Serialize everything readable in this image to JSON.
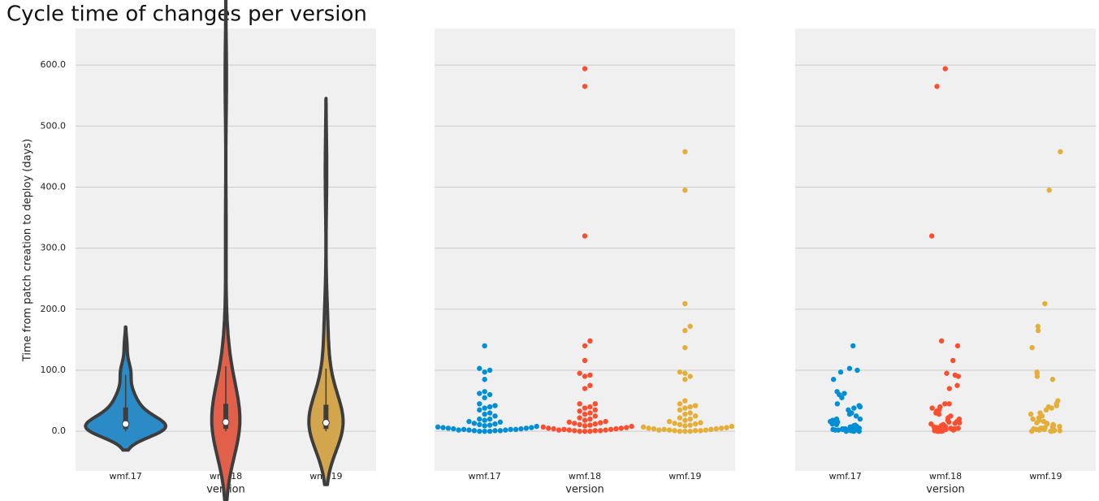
{
  "chart_data": [
    {
      "type": "violin",
      "title": "Cycle time of changes per version",
      "ylabel": "Time from patch creation to deploy (days)",
      "xlabel": "version",
      "categories": [
        "wmf.17",
        "wmf.18",
        "wmf.19"
      ],
      "colors": [
        "#2a8bc7",
        "#e2604a",
        "#d3a54c"
      ],
      "values": [
        [
          0,
          0,
          0,
          1,
          1,
          1,
          2,
          2,
          2,
          3,
          3,
          3,
          4,
          4,
          5,
          5,
          6,
          6,
          7,
          8,
          9,
          10,
          11,
          12,
          13,
          15,
          16,
          18,
          20,
          20,
          25,
          28,
          30,
          35,
          38,
          40,
          42,
          45,
          55,
          60,
          62,
          65,
          85,
          97,
          100,
          103,
          140
        ],
        [
          0,
          0,
          0,
          1,
          1,
          1,
          2,
          2,
          2,
          3,
          3,
          4,
          4,
          5,
          5,
          6,
          7,
          8,
          9,
          10,
          11,
          12,
          13,
          14,
          15,
          16,
          18,
          20,
          22,
          25,
          28,
          30,
          33,
          35,
          38,
          40,
          45,
          45,
          70,
          75,
          90,
          92,
          95,
          116,
          140,
          148,
          320,
          565,
          594
        ],
        [
          0,
          0,
          0,
          1,
          1,
          1,
          2,
          2,
          2,
          3,
          3,
          4,
          4,
          5,
          5,
          6,
          7,
          8,
          9,
          10,
          11,
          12,
          13,
          14,
          16,
          18,
          20,
          22,
          25,
          28,
          30,
          35,
          38,
          40,
          42,
          45,
          50,
          85,
          90,
          95,
          97,
          137,
          165,
          172,
          209,
          395,
          458
        ]
      ],
      "ylim": [
        -65,
        660
      ],
      "yticks": [
        {
          "value": 0,
          "label": "0.0"
        },
        {
          "value": 100,
          "label": "100.0"
        },
        {
          "value": 200,
          "label": "200.0"
        },
        {
          "value": 300,
          "label": "300.0"
        },
        {
          "value": 400,
          "label": "400.0"
        },
        {
          "value": 500,
          "label": "500.0"
        },
        {
          "value": 600,
          "label": "600.0"
        }
      ],
      "grid": true
    },
    {
      "type": "swarm",
      "xlabel": "version",
      "categories": [
        "wmf.17",
        "wmf.18",
        "wmf.19"
      ],
      "colors": [
        "#008fd5",
        "#fc4f30",
        "#e5ae38"
      ],
      "values": [
        [
          0,
          0,
          0,
          1,
          1,
          1,
          2,
          2,
          2,
          3,
          3,
          3,
          4,
          4,
          5,
          5,
          6,
          6,
          7,
          8,
          9,
          10,
          11,
          12,
          13,
          15,
          16,
          18,
          20,
          20,
          25,
          28,
          30,
          35,
          38,
          40,
          42,
          45,
          55,
          60,
          62,
          65,
          85,
          97,
          100,
          103,
          140
        ],
        [
          0,
          0,
          0,
          1,
          1,
          1,
          2,
          2,
          2,
          3,
          3,
          4,
          4,
          5,
          5,
          6,
          7,
          8,
          9,
          10,
          11,
          12,
          13,
          14,
          15,
          16,
          18,
          20,
          22,
          25,
          28,
          30,
          33,
          35,
          38,
          40,
          45,
          45,
          70,
          75,
          90,
          92,
          95,
          116,
          140,
          148,
          320,
          565,
          594
        ],
        [
          0,
          0,
          0,
          1,
          1,
          1,
          2,
          2,
          2,
          3,
          3,
          4,
          4,
          5,
          5,
          6,
          7,
          8,
          9,
          10,
          11,
          12,
          13,
          14,
          16,
          18,
          20,
          22,
          25,
          28,
          30,
          35,
          38,
          40,
          42,
          45,
          50,
          85,
          90,
          95,
          97,
          137,
          165,
          172,
          209,
          395,
          458
        ]
      ],
      "ylim": [
        -65,
        660
      ],
      "yticks": [
        0,
        100,
        200,
        300,
        400,
        500,
        600
      ],
      "grid": true
    },
    {
      "type": "strip",
      "xlabel": "version",
      "categories": [
        "wmf.17",
        "wmf.18",
        "wmf.19"
      ],
      "colors": [
        "#008fd5",
        "#fc4f30",
        "#e5ae38"
      ],
      "values": [
        [
          0,
          0,
          0,
          1,
          1,
          1,
          2,
          2,
          2,
          3,
          3,
          3,
          4,
          4,
          5,
          5,
          6,
          6,
          7,
          8,
          9,
          10,
          11,
          12,
          13,
          15,
          16,
          18,
          20,
          20,
          25,
          28,
          30,
          35,
          38,
          40,
          42,
          45,
          55,
          60,
          62,
          65,
          85,
          97,
          100,
          103,
          140
        ],
        [
          0,
          0,
          0,
          1,
          1,
          1,
          2,
          2,
          2,
          3,
          3,
          4,
          4,
          5,
          5,
          6,
          7,
          8,
          9,
          10,
          11,
          12,
          13,
          14,
          15,
          16,
          18,
          20,
          22,
          25,
          28,
          30,
          33,
          35,
          38,
          40,
          45,
          45,
          70,
          75,
          90,
          92,
          95,
          116,
          140,
          148,
          320,
          565,
          594
        ],
        [
          0,
          0,
          0,
          1,
          1,
          1,
          2,
          2,
          2,
          3,
          3,
          4,
          4,
          5,
          5,
          6,
          7,
          8,
          9,
          10,
          11,
          12,
          13,
          14,
          16,
          18,
          20,
          22,
          25,
          28,
          30,
          35,
          38,
          40,
          42,
          45,
          50,
          85,
          90,
          95,
          97,
          137,
          165,
          172,
          209,
          395,
          458
        ]
      ],
      "ylim": [
        -65,
        660
      ],
      "yticks": [
        0,
        100,
        200,
        300,
        400,
        500,
        600
      ],
      "grid": true
    }
  ]
}
